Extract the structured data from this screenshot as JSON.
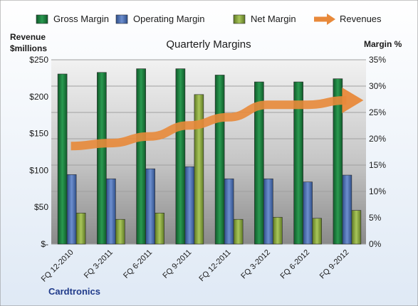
{
  "chart_data": {
    "type": "bar",
    "title": "Quarterly Margins",
    "company": "Cardtronics",
    "ylabel_left": [
      "Revenue",
      "$millions"
    ],
    "ylabel_right": "Margin %",
    "categories": [
      "FQ 12-2010",
      "FQ 3-2011",
      "FQ 6-2011",
      "FQ 9-2011",
      "FQ 12-2011",
      "FQ 3-2012",
      "FQ 6-2012",
      "FQ 9-2012"
    ],
    "ylim_left": [
      0,
      250
    ],
    "ylim_right": [
      0,
      35
    ],
    "yticks_left": [
      "$-",
      "$50",
      "$100",
      "$150",
      "$200",
      "$250"
    ],
    "yticks_right": [
      "0%",
      "5%",
      "10%",
      "15%",
      "20%",
      "25%",
      "30%",
      "35%"
    ],
    "series": [
      {
        "name": "Gross Margin",
        "axis": "right",
        "color": "#1e7a3e",
        "values": [
          32.3,
          32.6,
          33.3,
          33.3,
          32.1,
          30.8,
          30.8,
          31.4
        ]
      },
      {
        "name": "Operating Margin",
        "axis": "right",
        "color": "#4a6fb0",
        "values": [
          13.2,
          12.4,
          14.3,
          14.7,
          12.4,
          12.4,
          11.8,
          13.1
        ]
      },
      {
        "name": "Net Margin",
        "axis": "right",
        "color": "#8aa83e",
        "values": [
          5.9,
          4.7,
          5.9,
          28.4,
          4.7,
          5.1,
          4.9,
          6.4
        ]
      },
      {
        "name": "Revenues",
        "axis": "left",
        "type": "line",
        "color": "#e8893a",
        "values": [
          133,
          137,
          146,
          161,
          172,
          189,
          189,
          195
        ]
      }
    ],
    "legend_position": "top",
    "grid": true
  }
}
